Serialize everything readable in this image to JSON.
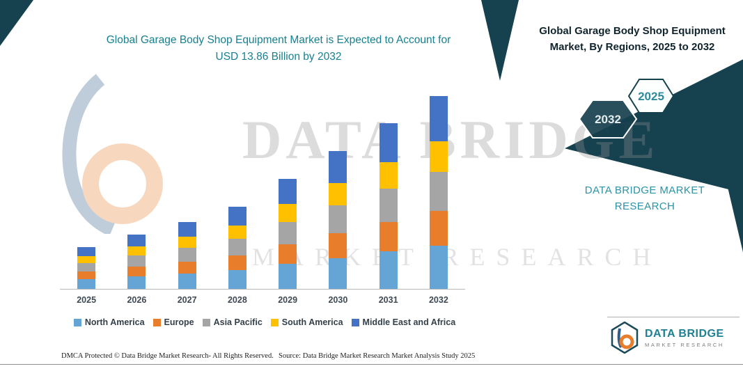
{
  "page": {
    "title_line1": "Global Garage Body Shop Equipment Market is Expected to Account for",
    "title_line2": "USD 13.86 Billion by 2032",
    "right_header_line1": "Global Garage Body Shop Equipment",
    "right_header_line2": "Market, By Regions, 2025 to 2032",
    "hexagons": {
      "left_label": "2032",
      "right_label": "2025"
    },
    "side_brand": "DATA BRIDGE MARKET RESEARCH",
    "watermark": {
      "line1": "DATA BRIDGE",
      "line2": "MARKET RESEARCH"
    },
    "footer": {
      "left": "DMCA Protected © Data Bridge Market Research-  All Rights Reserved.",
      "center": "Source: Data Bridge Market Research  Market Analysis Study 2025"
    },
    "logo": {
      "name": "DATA BRIDGE",
      "subname": "MARKET RESEARCH"
    },
    "colors": {
      "dark_shape": "#16414F",
      "teal_text": "#17808F",
      "brand_teal": "#1F7F93"
    }
  },
  "chart_data": {
    "type": "bar",
    "stacked": true,
    "title": "Global Garage Body Shop Equipment Market is Expected to Account for USD 13.86 Billion by 2032",
    "unit": "USD Billion",
    "categories": [
      "2025",
      "2026",
      "2027",
      "2028",
      "2029",
      "2030",
      "2031",
      "2032"
    ],
    "series": [
      {
        "name": "North America",
        "color": "#64A5D6",
        "values": [
          0.7,
          0.9,
          1.1,
          1.35,
          1.8,
          2.2,
          2.7,
          3.1
        ]
      },
      {
        "name": "Europe",
        "color": "#E87E2B",
        "values": [
          0.55,
          0.7,
          0.85,
          1.05,
          1.4,
          1.8,
          2.1,
          2.5
        ]
      },
      {
        "name": "Asia Pacific",
        "color": "#A5A5A5",
        "values": [
          0.6,
          0.8,
          1.0,
          1.2,
          1.6,
          2.0,
          2.4,
          2.8
        ]
      },
      {
        "name": "South America",
        "color": "#FFC000",
        "values": [
          0.5,
          0.65,
          0.8,
          0.95,
          1.3,
          1.6,
          1.9,
          2.2
        ]
      },
      {
        "name": "Middle East and Africa",
        "color": "#4472C4",
        "values": [
          0.65,
          0.85,
          1.05,
          1.35,
          1.8,
          2.3,
          2.8,
          3.26
        ]
      }
    ],
    "totals": [
      3.0,
      3.9,
      4.8,
      5.9,
      7.9,
      9.9,
      11.9,
      13.86
    ],
    "xlabel": "",
    "ylabel": "",
    "ylim": [
      0,
      14
    ],
    "grid": false,
    "legend_position": "bottom",
    "annotation": "USD 13.86 Billion by 2032"
  }
}
